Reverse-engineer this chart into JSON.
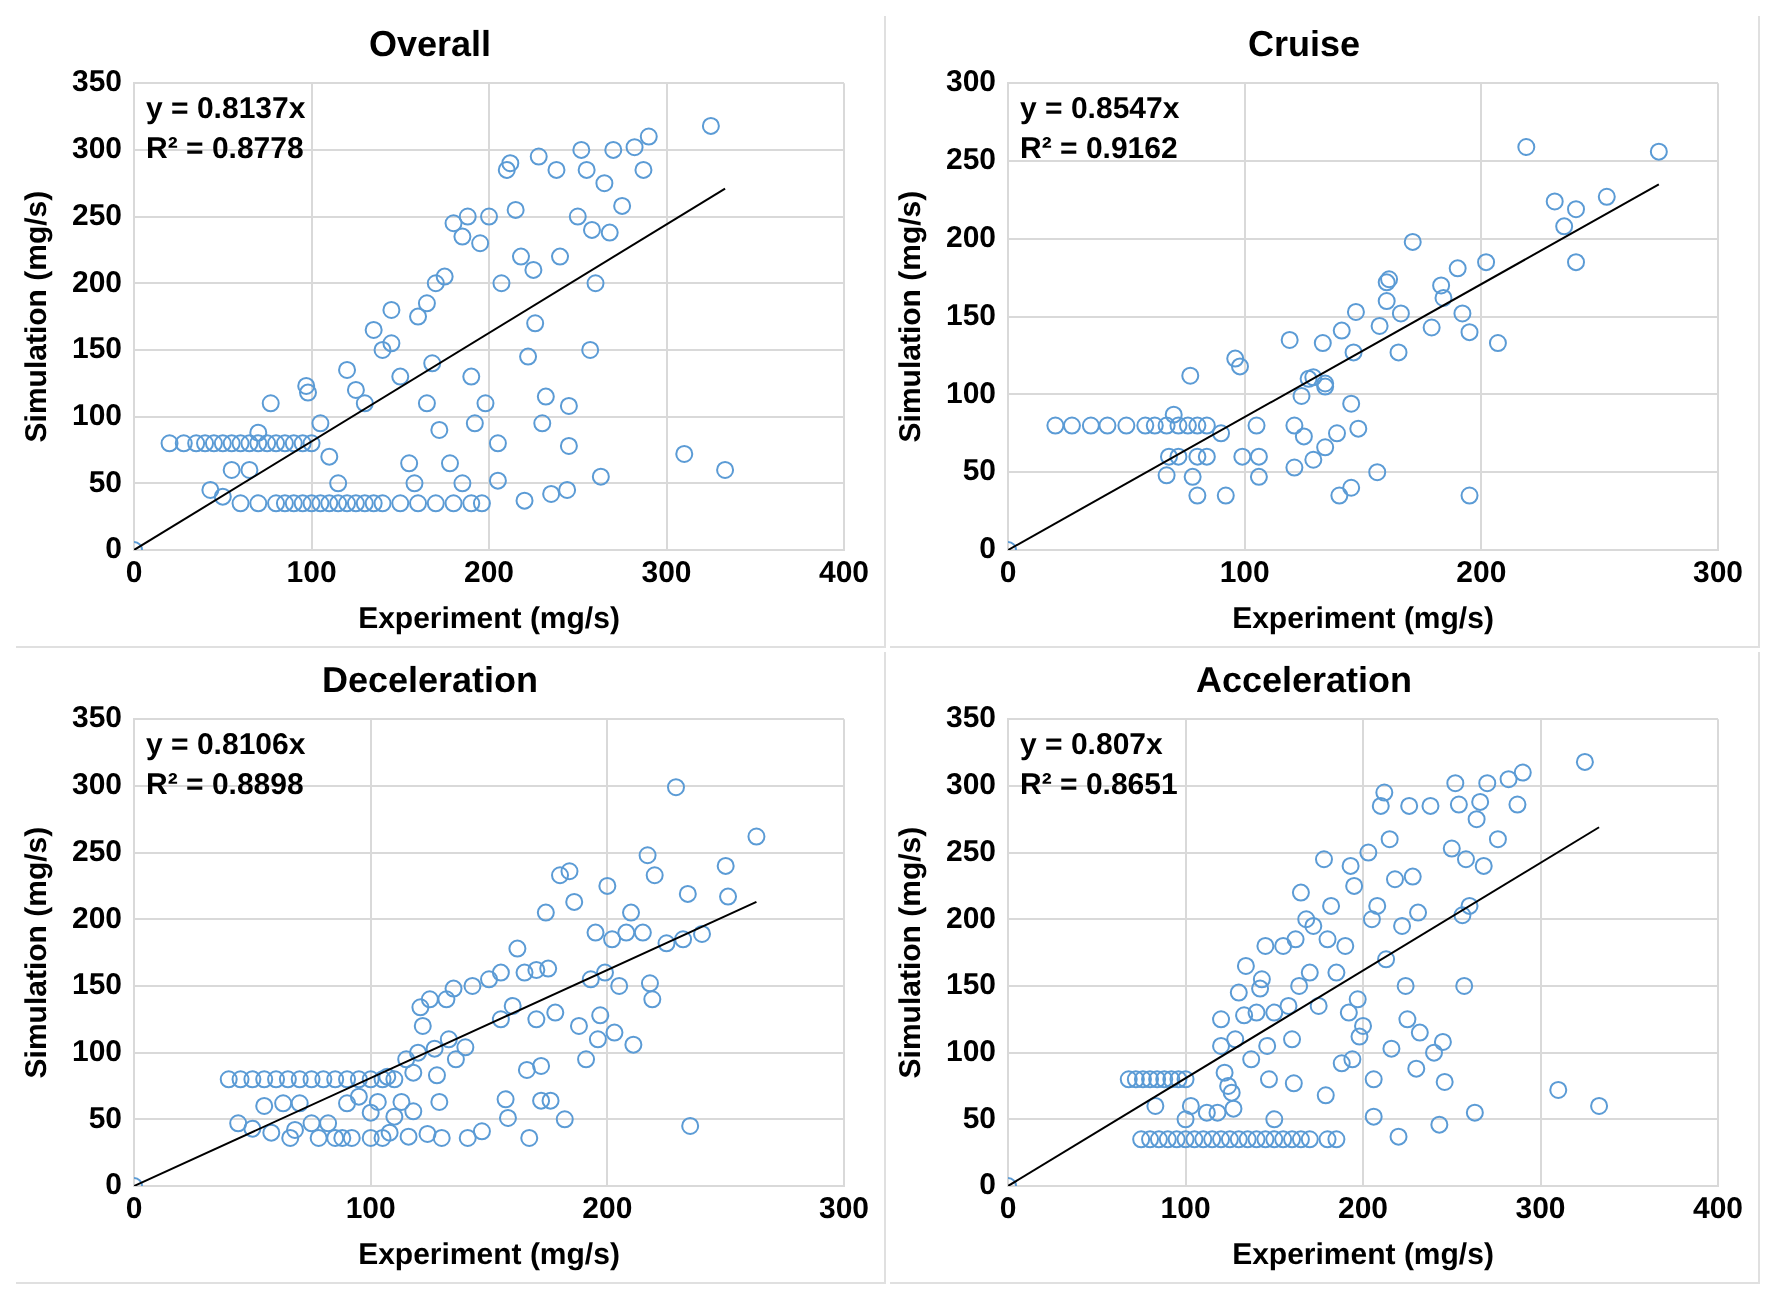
{
  "chart_data": [
    {
      "type": "scatter",
      "title": "Overall",
      "xlabel": "Experiment (mg/s)",
      "ylabel": "Simulation (mg/s)",
      "xlim": [
        0,
        400
      ],
      "xticks": [
        0,
        100,
        200,
        300,
        400
      ],
      "ylim": [
        0,
        350
      ],
      "yticks": [
        0,
        50,
        100,
        150,
        200,
        250,
        300,
        350
      ],
      "grid": true,
      "annotations": [
        "y = 0.8137x",
        "R² = 0.8778"
      ],
      "series": [
        {
          "color": "#5b9bd5",
          "marker": "circle",
          "x": [
            0,
            20,
            28,
            35,
            40,
            45,
            50,
            55,
            60,
            65,
            70,
            75,
            80,
            85,
            90,
            95,
            100,
            60,
            70,
            80,
            85,
            90,
            95,
            100,
            105,
            110,
            115,
            120,
            125,
            130,
            135,
            140,
            150,
            160,
            170,
            180,
            190,
            196,
            43,
            50,
            55,
            65,
            70,
            77,
            97,
            98,
            105,
            110,
            115,
            120,
            125,
            130,
            135,
            140,
            145,
            145,
            150,
            155,
            158,
            160,
            165,
            165,
            168,
            170,
            172,
            175,
            178,
            180,
            185,
            185,
            188,
            190,
            192,
            195,
            198,
            200,
            205,
            205,
            207,
            210,
            212,
            215,
            218,
            220,
            222,
            225,
            226,
            228,
            230,
            232,
            235,
            238,
            240,
            244,
            245,
            245,
            250,
            252,
            255,
            257,
            258,
            260,
            263,
            265,
            268,
            270,
            275,
            282,
            287,
            290,
            310,
            325,
            333
          ],
          "values": [
            0,
            80,
            80,
            80,
            80,
            80,
            80,
            80,
            80,
            80,
            80,
            80,
            80,
            80,
            80,
            80,
            80,
            35,
            35,
            35,
            35,
            35,
            35,
            35,
            35,
            35,
            35,
            35,
            35,
            35,
            35,
            35,
            35,
            35,
            35,
            35,
            35,
            35,
            45,
            40,
            60,
            60,
            88,
            110,
            123,
            118,
            95,
            70,
            50,
            135,
            120,
            110,
            165,
            150,
            155,
            180,
            130,
            65,
            50,
            175,
            185,
            110,
            140,
            200,
            90,
            205,
            65,
            245,
            235,
            50,
            250,
            130,
            95,
            230,
            110,
            250,
            80,
            52,
            200,
            285,
            290,
            255,
            220,
            37,
            145,
            210,
            170,
            295,
            95,
            115,
            42,
            285,
            220,
            45,
            108,
            78,
            250,
            300,
            285,
            150,
            240,
            200,
            55,
            275,
            238,
            300,
            258,
            302,
            285,
            310,
            72,
            318,
            60
          ]
        },
        {
          "type": "line",
          "color": "#000000",
          "marker": "none",
          "x": [
            0,
            333
          ],
          "values": [
            0,
            271
          ]
        }
      ]
    },
    {
      "type": "scatter",
      "title": "Cruise",
      "xlabel": "Experiment (mg/s)",
      "ylabel": "Simulation (mg/s)",
      "xlim": [
        0,
        300
      ],
      "xticks": [
        0,
        100,
        200,
        300
      ],
      "ylim": [
        0,
        300
      ],
      "yticks": [
        0,
        50,
        100,
        150,
        200,
        250,
        300
      ],
      "grid": true,
      "annotations": [
        "y = 0.8547x",
        "R² = 0.9162"
      ],
      "series": [
        {
          "color": "#5b9bd5",
          "marker": "circle",
          "x": [
            0,
            20,
            27,
            35,
            42,
            50,
            58,
            62,
            67,
            72,
            76,
            80,
            84,
            70,
            77,
            67,
            68,
            72,
            78,
            80,
            80,
            84,
            90,
            92,
            96,
            98,
            99,
            105,
            106,
            106,
            119,
            121,
            121,
            124,
            125,
            127,
            129,
            129,
            133,
            134,
            134,
            134,
            139,
            140,
            141,
            145,
            145,
            146,
            147,
            148,
            156,
            157,
            160,
            160,
            161,
            165,
            166,
            171,
            179,
            183,
            184,
            190,
            192,
            195,
            195,
            202,
            207,
            219,
            231,
            235,
            240,
            240,
            253,
            275
          ],
          "values": [
            0,
            80,
            80,
            80,
            80,
            80,
            80,
            80,
            80,
            80,
            80,
            80,
            80,
            87,
            112,
            48,
            60,
            60,
            47,
            35,
            60,
            60,
            75,
            35,
            123,
            118,
            60,
            80,
            60,
            47,
            135,
            80,
            53,
            99,
            73,
            110,
            111,
            58,
            133,
            107,
            105,
            66,
            75,
            35,
            141,
            94,
            40,
            127,
            153,
            78,
            50,
            144,
            160,
            172,
            174,
            127,
            152,
            198,
            143,
            170,
            162,
            181,
            152,
            35,
            140,
            185,
            133,
            259,
            224,
            208,
            185,
            219,
            227,
            256
          ]
        },
        {
          "type": "line",
          "color": "#000000",
          "marker": "none",
          "x": [
            0,
            275
          ],
          "values": [
            0,
            235
          ]
        }
      ]
    },
    {
      "type": "scatter",
      "title": "Deceleration",
      "xlabel": "Experiment (mg/s)",
      "ylabel": "Simulation (mg/s)",
      "xlim": [
        0,
        300
      ],
      "xticks": [
        0,
        100,
        200,
        300
      ],
      "ylim": [
        0,
        350
      ],
      "yticks": [
        0,
        50,
        100,
        150,
        200,
        250,
        300,
        350
      ],
      "grid": true,
      "annotations": [
        "y = 0.8106x",
        "R² = 0.8898"
      ],
      "series": [
        {
          "color": "#5b9bd5",
          "marker": "circle",
          "x": [
            0,
            40,
            45,
            50,
            55,
            60,
            65,
            70,
            75,
            80,
            85,
            90,
            95,
            100,
            105,
            110,
            44,
            50,
            55,
            58,
            63,
            66,
            68,
            70,
            75,
            78,
            82,
            85,
            88,
            90,
            92,
            95,
            100,
            100,
            103,
            105,
            107,
            108,
            110,
            113,
            115,
            116,
            118,
            118,
            120,
            121,
            122,
            124,
            125,
            127,
            128,
            129,
            130,
            132,
            133,
            135,
            136,
            140,
            141,
            143,
            147,
            150,
            155,
            155,
            157,
            158,
            160,
            162,
            165,
            166,
            167,
            170,
            170,
            172,
            172,
            174,
            175,
            176,
            178,
            180,
            182,
            184,
            186,
            188,
            191,
            193,
            195,
            196,
            197,
            199,
            200,
            202,
            203,
            205,
            208,
            210,
            211,
            215,
            217,
            218,
            219,
            220,
            225,
            229,
            232,
            234,
            235,
            240,
            250,
            251,
            263
          ],
          "values": [
            0,
            80,
            80,
            80,
            80,
            80,
            80,
            80,
            80,
            80,
            80,
            80,
            80,
            80,
            80,
            80,
            47,
            43,
            60,
            40,
            62,
            36,
            42,
            62,
            47,
            36,
            47,
            36,
            36,
            62,
            36,
            67,
            55,
            36,
            63,
            36,
            82,
            40,
            52,
            63,
            95,
            37,
            85,
            56,
            100,
            134,
            120,
            39,
            140,
            103,
            83,
            63,
            36,
            140,
            110,
            148,
            95,
            104,
            36,
            150,
            41,
            155,
            160,
            125,
            65,
            51,
            135,
            178,
            160,
            87,
            36,
            162,
            125,
            90,
            64,
            205,
            163,
            64,
            130,
            233,
            50,
            236,
            213,
            120,
            95,
            155,
            190,
            110,
            128,
            160,
            225,
            185,
            115,
            150,
            190,
            205,
            106,
            190,
            248,
            152,
            140,
            233,
            182,
            299,
            185,
            219,
            45,
            189,
            240,
            217,
            262
          ]
        },
        {
          "type": "line",
          "color": "#000000",
          "marker": "none",
          "x": [
            0,
            263
          ],
          "values": [
            0,
            213
          ]
        }
      ]
    },
    {
      "type": "scatter",
      "title": "Acceleration",
      "xlabel": "Experiment (mg/s)",
      "ylabel": "Simulation (mg/s)",
      "xlim": [
        0,
        400
      ],
      "xticks": [
        0,
        100,
        200,
        300,
        400
      ],
      "ylim": [
        0,
        350
      ],
      "yticks": [
        0,
        50,
        100,
        150,
        200,
        250,
        300,
        350
      ],
      "grid": true,
      "annotations": [
        "y = 0.807x",
        "R² = 0.8651"
      ],
      "series": [
        {
          "color": "#5b9bd5",
          "marker": "circle",
          "x": [
            0,
            68,
            72,
            76,
            80,
            84,
            88,
            92,
            96,
            100,
            75,
            80,
            85,
            90,
            95,
            100,
            105,
            110,
            115,
            120,
            125,
            130,
            135,
            140,
            145,
            150,
            155,
            160,
            165,
            170,
            180,
            185,
            83,
            100,
            103,
            112,
            118,
            120,
            120,
            122,
            124,
            126,
            127,
            128,
            130,
            133,
            134,
            137,
            140,
            142,
            143,
            145,
            146,
            147,
            150,
            150,
            155,
            158,
            160,
            161,
            162,
            164,
            165,
            168,
            170,
            172,
            175,
            178,
            179,
            180,
            182,
            185,
            188,
            190,
            192,
            193,
            194,
            195,
            197,
            198,
            200,
            203,
            205,
            206,
            206,
            208,
            210,
            212,
            213,
            215,
            216,
            218,
            220,
            222,
            224,
            225,
            226,
            228,
            230,
            231,
            232,
            238,
            240,
            243,
            245,
            246,
            250,
            252,
            254,
            256,
            257,
            258,
            260,
            263,
            264,
            266,
            268,
            270,
            276,
            282,
            287,
            290,
            310,
            325,
            333
          ],
          "values": [
            0,
            80,
            80,
            80,
            80,
            80,
            80,
            80,
            80,
            80,
            35,
            35,
            35,
            35,
            35,
            35,
            35,
            35,
            35,
            35,
            35,
            35,
            35,
            35,
            35,
            35,
            35,
            35,
            35,
            35,
            35,
            35,
            60,
            50,
            60,
            55,
            55,
            105,
            125,
            85,
            75,
            70,
            58,
            110,
            145,
            128,
            165,
            95,
            130,
            148,
            155,
            180,
            105,
            80,
            130,
            50,
            180,
            135,
            110,
            77,
            185,
            150,
            220,
            200,
            160,
            195,
            135,
            245,
            68,
            185,
            210,
            160,
            92,
            180,
            130,
            240,
            95,
            225,
            140,
            112,
            120,
            250,
            200,
            80,
            52,
            210,
            285,
            295,
            170,
            260,
            103,
            230,
            37,
            195,
            150,
            125,
            285,
            232,
            88,
            205,
            115,
            285,
            100,
            46,
            108,
            78,
            253,
            302,
            286,
            203,
            150,
            245,
            210,
            55,
            275,
            288,
            240,
            302,
            260,
            305,
            286,
            310,
            72,
            318,
            60
          ]
        },
        {
          "type": "line",
          "color": "#000000",
          "marker": "none",
          "x": [
            0,
            333
          ],
          "values": [
            0,
            269
          ]
        }
      ]
    }
  ]
}
